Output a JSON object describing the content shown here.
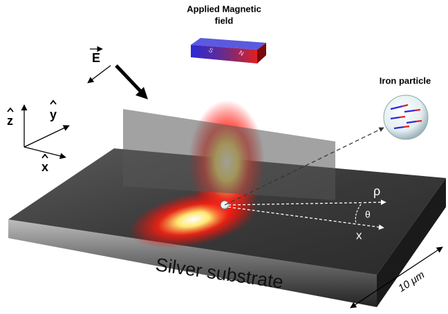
{
  "labels": {
    "magnetic_field": [
      "Applied Magnetic",
      "field"
    ],
    "magnet_poles": [
      "S",
      "N"
    ],
    "electric_field": "E",
    "iron_particle": "Iron particle",
    "axes": [
      "z",
      "y",
      "x"
    ],
    "rho": "ρ",
    "theta": "θ",
    "x_direction": "x",
    "substrate": "Silver substrate",
    "scale": "10 μm"
  }
}
